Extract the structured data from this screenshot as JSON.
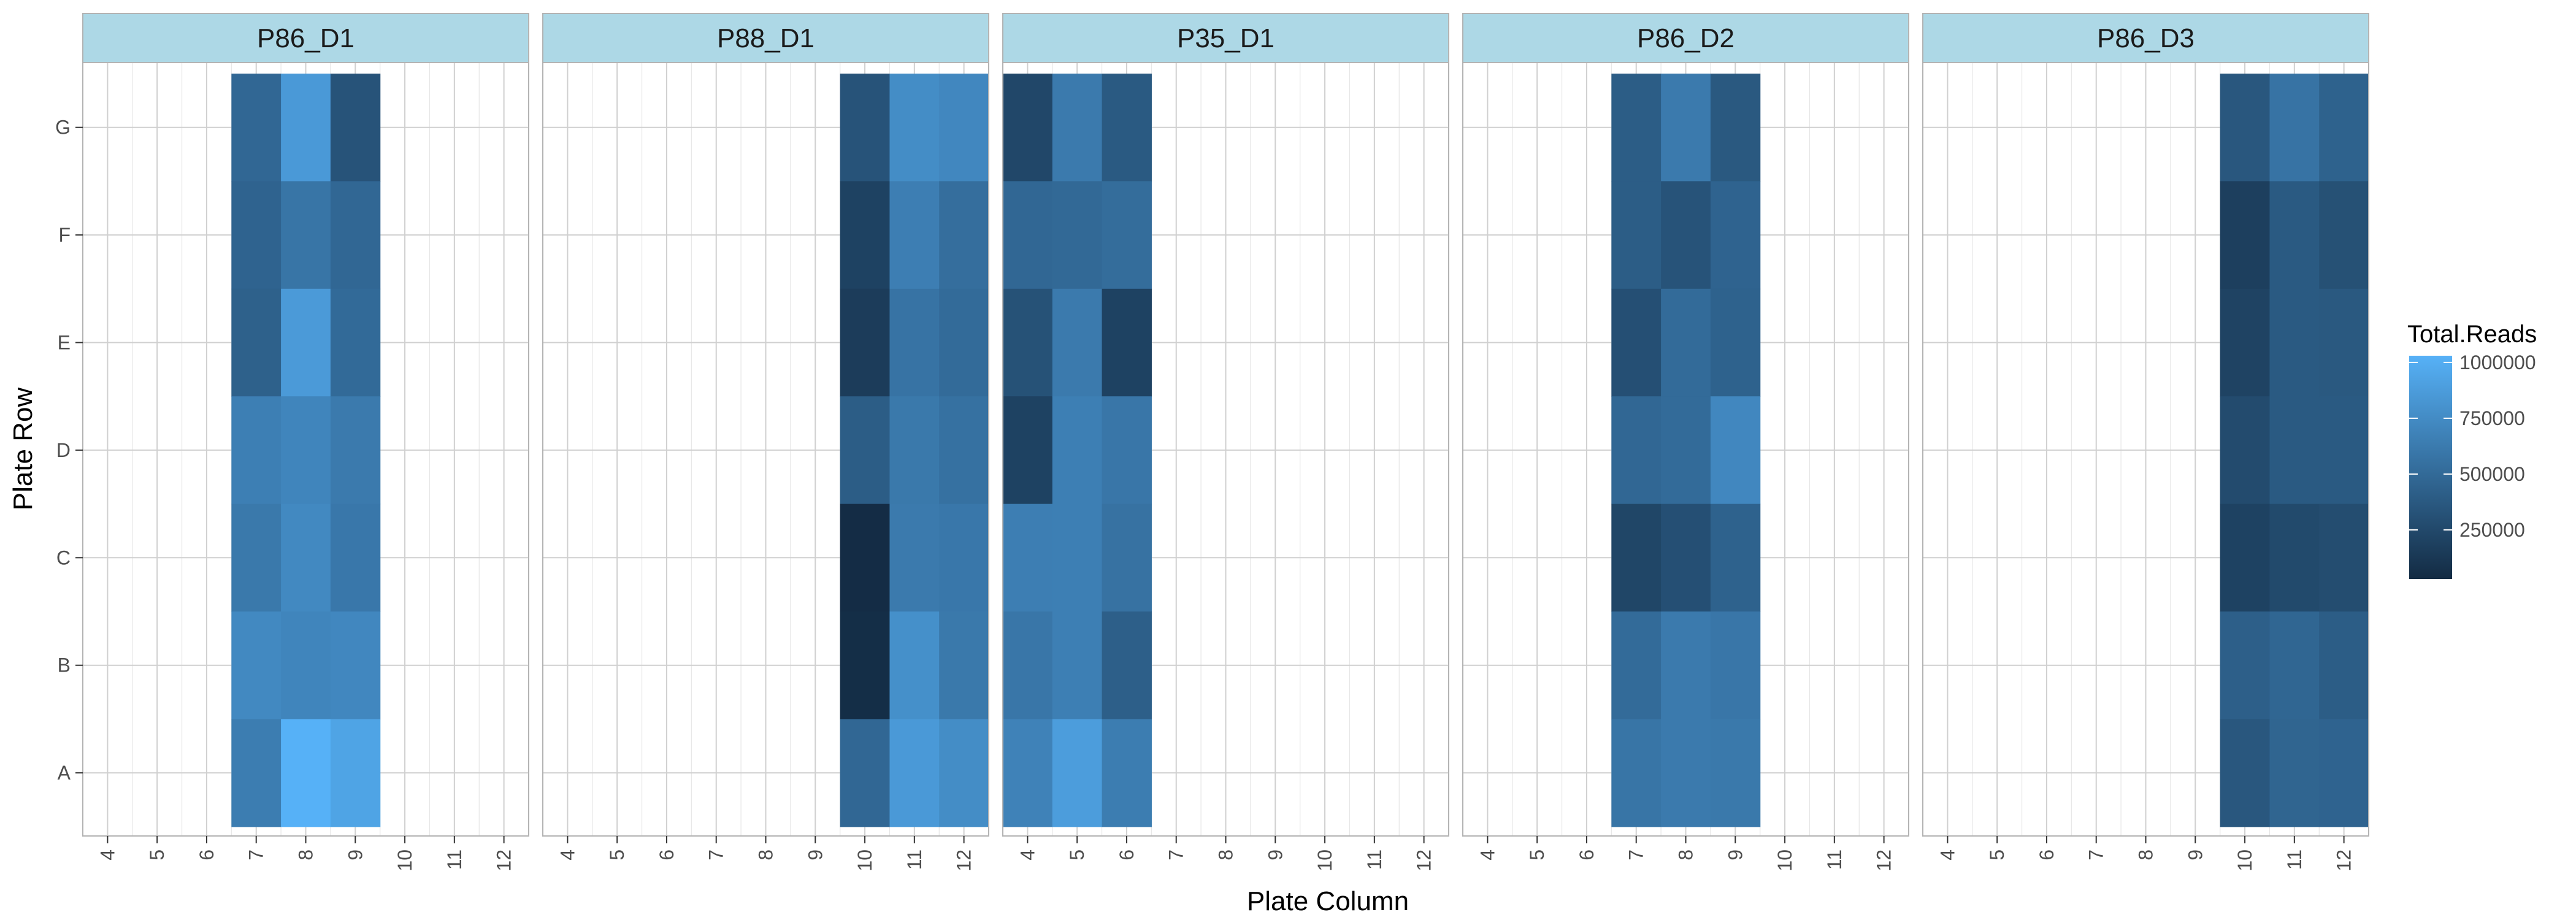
{
  "chart_data": {
    "type": "heatmap",
    "xlabel": "Plate Column",
    "ylabel": "Plate Row",
    "x_ticks": [
      "4",
      "5",
      "6",
      "7",
      "8",
      "9",
      "10",
      "11",
      "12"
    ],
    "y_ticks": [
      "G",
      "F",
      "E",
      "D",
      "C",
      "B",
      "A"
    ],
    "x_range": [
      3.5,
      12.5
    ],
    "legend": {
      "title": "Total.Reads",
      "labels": [
        "1000000",
        "750000",
        "500000",
        "250000"
      ],
      "breaks": [
        1000000,
        750000,
        500000,
        250000
      ],
      "range": [
        30000,
        1030000
      ],
      "low_color": "#132B43",
      "high_color": "#56B1F7",
      "position": "right"
    },
    "strip_color": "#ADD8E6",
    "grid": true,
    "panels": [
      {
        "name": "P86_D1",
        "columns": [
          7,
          8,
          9
        ],
        "values": {
          "G": [
            480000,
            850000,
            330000
          ],
          "F": [
            450000,
            580000,
            480000
          ],
          "E": [
            430000,
            860000,
            500000
          ],
          "D": [
            660000,
            700000,
            620000
          ],
          "C": [
            610000,
            730000,
            600000
          ],
          "B": [
            730000,
            700000,
            720000
          ],
          "A": [
            640000,
            1030000,
            930000
          ]
        }
      },
      {
        "name": "P88_D1",
        "columns": [
          10,
          11,
          12
        ],
        "values": {
          "G": [
            330000,
            760000,
            720000
          ],
          "F": [
            200000,
            650000,
            530000
          ],
          "E": [
            160000,
            570000,
            510000
          ],
          "D": [
            400000,
            610000,
            550000
          ],
          "C": [
            40000,
            620000,
            600000
          ],
          "B": [
            50000,
            780000,
            610000
          ],
          "A": [
            480000,
            850000,
            760000
          ]
        }
      },
      {
        "name": "P35_D1",
        "columns": [
          4,
          5,
          6
        ],
        "values": {
          "G": [
            240000,
            620000,
            380000
          ],
          "F": [
            480000,
            490000,
            520000
          ],
          "E": [
            320000,
            620000,
            200000
          ],
          "D": [
            200000,
            660000,
            590000
          ],
          "C": [
            650000,
            660000,
            560000
          ],
          "B": [
            590000,
            660000,
            420000
          ],
          "A": [
            680000,
            880000,
            640000
          ]
        }
      },
      {
        "name": "P86_D2",
        "columns": [
          7,
          8,
          9
        ],
        "values": {
          "G": [
            400000,
            620000,
            370000
          ],
          "F": [
            400000,
            330000,
            450000
          ],
          "E": [
            300000,
            510000,
            440000
          ],
          "D": [
            480000,
            510000,
            720000
          ],
          "C": [
            230000,
            300000,
            440000
          ],
          "B": [
            510000,
            620000,
            590000
          ],
          "A": [
            580000,
            620000,
            610000
          ]
        }
      },
      {
        "name": "P86_D3",
        "columns": [
          10,
          11,
          12
        ],
        "values": {
          "G": [
            360000,
            570000,
            440000
          ],
          "F": [
            180000,
            380000,
            310000
          ],
          "E": [
            210000,
            380000,
            370000
          ],
          "D": [
            270000,
            380000,
            380000
          ],
          "C": [
            200000,
            260000,
            280000
          ],
          "B": [
            420000,
            470000,
            400000
          ],
          "A": [
            360000,
            460000,
            450000
          ]
        }
      }
    ]
  }
}
